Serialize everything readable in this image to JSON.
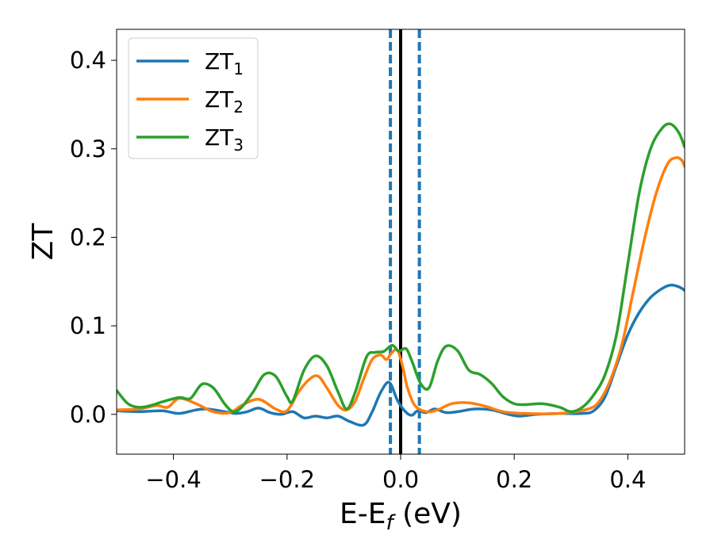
{
  "chart_data": {
    "type": "line",
    "xlabel_main": "E-E",
    "xlabel_sub": "f",
    "xlabel_tail": " (eV)",
    "ylabel": "ZT",
    "xlim": [
      -0.5,
      0.5
    ],
    "ylim": [
      -0.045,
      0.435
    ],
    "xticks": [
      -0.4,
      -0.2,
      0.0,
      0.2,
      0.4
    ],
    "xtick_labels": [
      "−0.4",
      "−0.2",
      "0.0",
      "0.2",
      "0.4"
    ],
    "yticks": [
      0.0,
      0.1,
      0.2,
      0.3,
      0.4
    ],
    "ytick_labels": [
      "0.0",
      "0.1",
      "0.2",
      "0.3",
      "0.4"
    ],
    "grid": false,
    "legend_placement": "top-left",
    "vlines": [
      {
        "x": 0.0,
        "style": "solid",
        "color": "#000000"
      },
      {
        "x": -0.018,
        "style": "dashed",
        "color": "#1f77b4"
      },
      {
        "x": 0.033,
        "style": "dashed",
        "color": "#1f77b4"
      }
    ],
    "series": [
      {
        "name": "ZT",
        "name_sub": "1",
        "color": "#1f77b4",
        "points": [
          [
            -0.5,
            0.004
          ],
          [
            -0.46,
            0.003
          ],
          [
            -0.42,
            0.004
          ],
          [
            -0.39,
            0.001
          ],
          [
            -0.36,
            0.005
          ],
          [
            -0.34,
            0.006
          ],
          [
            -0.31,
            0.003
          ],
          [
            -0.29,
            0.001
          ],
          [
            -0.27,
            0.003
          ],
          [
            -0.25,
            0.007
          ],
          [
            -0.23,
            0.002
          ],
          [
            -0.21,
            0.0
          ],
          [
            -0.19,
            0.003
          ],
          [
            -0.17,
            -0.004
          ],
          [
            -0.15,
            -0.002
          ],
          [
            -0.13,
            -0.004
          ],
          [
            -0.11,
            -0.002
          ],
          [
            -0.09,
            -0.008
          ],
          [
            -0.065,
            -0.012
          ],
          [
            -0.05,
            0.003
          ],
          [
            -0.035,
            0.025
          ],
          [
            -0.02,
            0.036
          ],
          [
            -0.005,
            0.015
          ],
          [
            0.01,
            0.002
          ],
          [
            0.02,
            -0.001
          ],
          [
            0.03,
            0.004
          ],
          [
            0.045,
            0.002
          ],
          [
            0.06,
            0.006
          ],
          [
            0.08,
            0.002
          ],
          [
            0.1,
            0.003
          ],
          [
            0.13,
            0.006
          ],
          [
            0.16,
            0.005
          ],
          [
            0.19,
            0.0
          ],
          [
            0.21,
            -0.002
          ],
          [
            0.24,
            0.0
          ],
          [
            0.28,
            0.001
          ],
          [
            0.32,
            0.001
          ],
          [
            0.34,
            0.004
          ],
          [
            0.36,
            0.02
          ],
          [
            0.38,
            0.055
          ],
          [
            0.4,
            0.09
          ],
          [
            0.42,
            0.115
          ],
          [
            0.44,
            0.132
          ],
          [
            0.46,
            0.142
          ],
          [
            0.475,
            0.146
          ],
          [
            0.49,
            0.144
          ],
          [
            0.5,
            0.14
          ]
        ]
      },
      {
        "name": "ZT",
        "name_sub": "2",
        "color": "#ff7f0e",
        "points": [
          [
            -0.5,
            0.005
          ],
          [
            -0.46,
            0.006
          ],
          [
            -0.43,
            0.01
          ],
          [
            -0.41,
            0.008
          ],
          [
            -0.39,
            0.018
          ],
          [
            -0.36,
            0.012
          ],
          [
            -0.33,
            0.003
          ],
          [
            -0.3,
            0.002
          ],
          [
            -0.28,
            0.01
          ],
          [
            -0.25,
            0.017
          ],
          [
            -0.22,
            0.006
          ],
          [
            -0.2,
            0.004
          ],
          [
            -0.18,
            0.025
          ],
          [
            -0.16,
            0.04
          ],
          [
            -0.145,
            0.043
          ],
          [
            -0.13,
            0.03
          ],
          [
            -0.11,
            0.01
          ],
          [
            -0.095,
            0.005
          ],
          [
            -0.08,
            0.015
          ],
          [
            -0.065,
            0.04
          ],
          [
            -0.05,
            0.062
          ],
          [
            -0.035,
            0.067
          ],
          [
            -0.025,
            0.062
          ],
          [
            -0.015,
            0.07
          ],
          [
            -0.005,
            0.072
          ],
          [
            0.005,
            0.05
          ],
          [
            0.012,
            0.03
          ],
          [
            0.025,
            0.01
          ],
          [
            0.045,
            0.003
          ],
          [
            0.065,
            0.005
          ],
          [
            0.09,
            0.012
          ],
          [
            0.12,
            0.013
          ],
          [
            0.15,
            0.009
          ],
          [
            0.18,
            0.003
          ],
          [
            0.22,
            0.001
          ],
          [
            0.28,
            0.001
          ],
          [
            0.33,
            0.006
          ],
          [
            0.35,
            0.015
          ],
          [
            0.37,
            0.04
          ],
          [
            0.39,
            0.08
          ],
          [
            0.41,
            0.14
          ],
          [
            0.43,
            0.2
          ],
          [
            0.45,
            0.25
          ],
          [
            0.47,
            0.283
          ],
          [
            0.485,
            0.29
          ],
          [
            0.495,
            0.287
          ],
          [
            0.5,
            0.28
          ]
        ]
      },
      {
        "name": "ZT",
        "name_sub": "3",
        "color": "#2ca02c",
        "points": [
          [
            -0.5,
            0.027
          ],
          [
            -0.48,
            0.012
          ],
          [
            -0.46,
            0.008
          ],
          [
            -0.44,
            0.01
          ],
          [
            -0.42,
            0.014
          ],
          [
            -0.39,
            0.019
          ],
          [
            -0.37,
            0.018
          ],
          [
            -0.35,
            0.034
          ],
          [
            -0.33,
            0.03
          ],
          [
            -0.31,
            0.012
          ],
          [
            -0.295,
            0.003
          ],
          [
            -0.28,
            0.008
          ],
          [
            -0.26,
            0.025
          ],
          [
            -0.24,
            0.045
          ],
          [
            -0.22,
            0.043
          ],
          [
            -0.2,
            0.02
          ],
          [
            -0.19,
            0.015
          ],
          [
            -0.17,
            0.05
          ],
          [
            -0.15,
            0.066
          ],
          [
            -0.13,
            0.055
          ],
          [
            -0.11,
            0.025
          ],
          [
            -0.095,
            0.006
          ],
          [
            -0.08,
            0.025
          ],
          [
            -0.06,
            0.065
          ],
          [
            -0.045,
            0.07
          ],
          [
            -0.03,
            0.071
          ],
          [
            -0.015,
            0.078
          ],
          [
            -0.005,
            0.072
          ],
          [
            0.0,
            0.072
          ],
          [
            0.01,
            0.074
          ],
          [
            0.02,
            0.06
          ],
          [
            0.035,
            0.035
          ],
          [
            0.05,
            0.03
          ],
          [
            0.065,
            0.06
          ],
          [
            0.08,
            0.077
          ],
          [
            0.1,
            0.072
          ],
          [
            0.12,
            0.05
          ],
          [
            0.14,
            0.045
          ],
          [
            0.16,
            0.035
          ],
          [
            0.18,
            0.02
          ],
          [
            0.2,
            0.012
          ],
          [
            0.22,
            0.011
          ],
          [
            0.25,
            0.012
          ],
          [
            0.28,
            0.008
          ],
          [
            0.3,
            0.003
          ],
          [
            0.32,
            0.008
          ],
          [
            0.34,
            0.022
          ],
          [
            0.36,
            0.045
          ],
          [
            0.38,
            0.09
          ],
          [
            0.4,
            0.17
          ],
          [
            0.42,
            0.25
          ],
          [
            0.44,
            0.3
          ],
          [
            0.46,
            0.323
          ],
          [
            0.475,
            0.328
          ],
          [
            0.49,
            0.318
          ],
          [
            0.5,
            0.302
          ]
        ]
      }
    ]
  }
}
